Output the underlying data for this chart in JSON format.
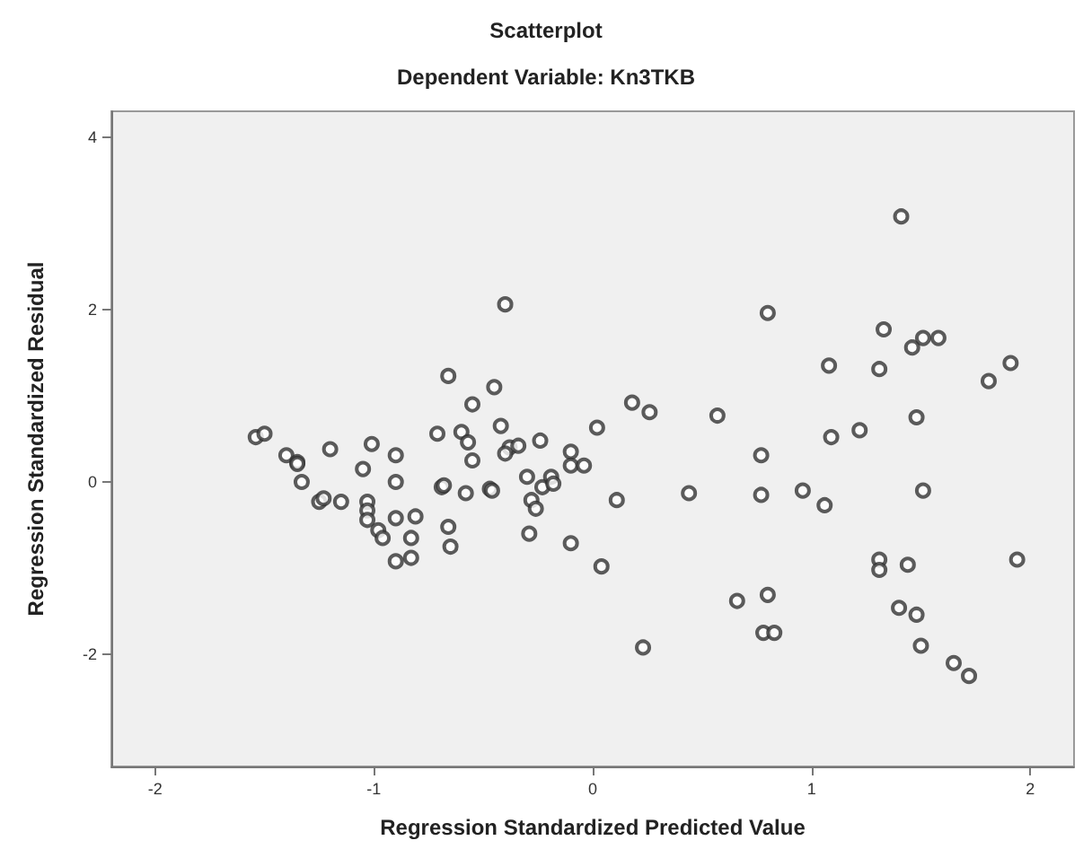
{
  "chart_data": {
    "type": "scatter",
    "title": "Scatterplot",
    "subtitle": "Dependent Variable: Kn3TKB",
    "xlabel": "Regression Standardized Predicted Value",
    "ylabel": "Regression Standardized Residual",
    "xlim": [
      -2.2,
      2.2
    ],
    "ylim": [
      -3.3,
      4.3
    ],
    "xticks": [
      -2,
      -1,
      0,
      1,
      2
    ],
    "yticks": [
      -2,
      0,
      2,
      4
    ],
    "grid": false,
    "marker": "circle",
    "series": [
      {
        "color": "#333333",
        "x": [
          -0.4,
          -0.66,
          -0.45,
          -0.55,
          -0.42,
          0.02,
          -1.54,
          -1.5,
          -0.71,
          -0.6,
          -0.57,
          -0.24,
          -0.1,
          -0.1,
          -0.04,
          -0.38,
          -0.34,
          -0.4,
          -0.55,
          -1.4,
          -1.35,
          -1.35,
          -1.2,
          -1.01,
          -0.9,
          -1.05,
          -0.9,
          -1.33,
          -1.25,
          -1.23,
          -1.15,
          -1.03,
          -1.03,
          -1.03,
          -0.98,
          -0.96,
          -0.9,
          -0.81,
          -0.83,
          -0.9,
          -0.83,
          -0.66,
          -0.65,
          -0.69,
          -0.68,
          -0.58,
          -0.47,
          -0.46,
          -0.3,
          -0.23,
          -0.19,
          -0.18,
          -0.28,
          -0.26,
          -0.29,
          -0.1,
          0.04,
          1.41,
          0.8,
          1.33,
          1.46,
          1.51,
          1.58,
          1.08,
          1.31,
          1.91,
          1.81,
          1.48,
          0.18,
          0.26,
          0.57,
          1.09,
          1.22,
          0.77,
          0.11,
          0.44,
          0.77,
          0.96,
          1.06,
          1.51,
          0.23,
          0.66,
          0.8,
          0.78,
          0.83,
          1.31,
          1.31,
          1.44,
          1.94,
          1.4,
          1.48,
          1.5,
          1.65,
          1.72
        ],
        "values": [
          2.06,
          1.23,
          1.1,
          0.9,
          0.65,
          0.63,
          0.52,
          0.56,
          0.56,
          0.58,
          0.46,
          0.48,
          0.35,
          0.19,
          0.19,
          0.4,
          0.42,
          0.33,
          0.25,
          0.31,
          0.23,
          0.21,
          0.38,
          0.44,
          0.31,
          0.15,
          0.0,
          0.0,
          -0.23,
          -0.19,
          -0.23,
          -0.23,
          -0.33,
          -0.44,
          -0.56,
          -0.65,
          -0.42,
          -0.4,
          -0.65,
          -0.92,
          -0.88,
          -0.52,
          -0.75,
          -0.06,
          -0.04,
          -0.13,
          -0.08,
          -0.1,
          0.06,
          -0.06,
          0.06,
          -0.02,
          -0.21,
          -0.31,
          -0.6,
          -0.71,
          -0.98,
          3.08,
          1.96,
          1.77,
          1.56,
          1.67,
          1.67,
          1.35,
          1.31,
          1.38,
          1.17,
          0.75,
          0.92,
          0.81,
          0.77,
          0.52,
          0.6,
          0.31,
          -0.21,
          -0.13,
          -0.15,
          -0.1,
          -0.27,
          -0.1,
          -1.92,
          -1.38,
          -1.31,
          -1.75,
          -1.75,
          -0.9,
          -1.02,
          -0.96,
          -0.9,
          -1.46,
          -1.54,
          -1.9,
          -2.1,
          -2.25
        ]
      }
    ]
  }
}
